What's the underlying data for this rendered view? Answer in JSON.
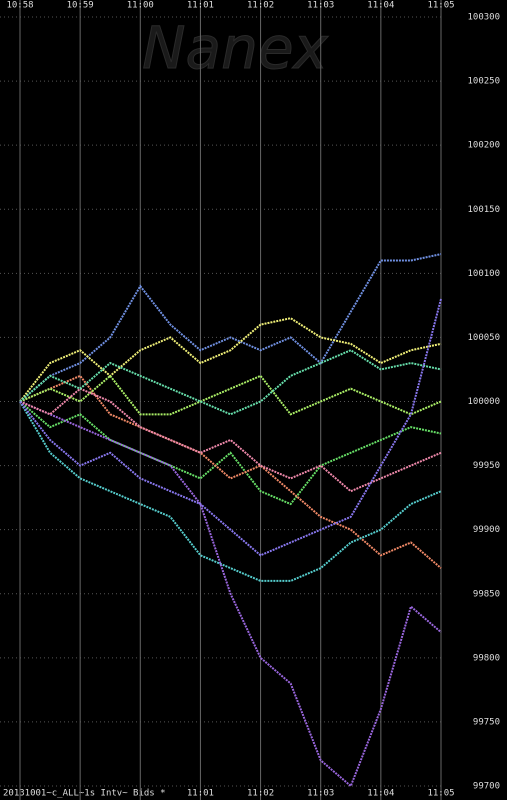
{
  "chart_data": {
    "type": "line",
    "title": "Nanex",
    "footer": "20131001~c_ALL~1s Intv~ Bids *",
    "x": [
      "10:58:00",
      "10:58:30",
      "10:59:00",
      "10:59:30",
      "11:00:00",
      "11:00:30",
      "11:01:00",
      "11:01:30",
      "11:02:00",
      "11:02:30",
      "11:03:00",
      "11:03:30",
      "11:04:00",
      "11:04:30",
      "11:05:00"
    ],
    "xlim": [
      "10:58",
      "11:05"
    ],
    "xticks": [
      "10:58",
      "10:59",
      "11:00",
      "11:01",
      "11:02",
      "11:03",
      "11:04",
      "11:05"
    ],
    "ylim": [
      99700,
      100300
    ],
    "yticks": [
      99700,
      99750,
      99800,
      99850,
      99900,
      99950,
      100000,
      100050,
      100100,
      100150,
      100200,
      100250,
      100300
    ],
    "grid": true,
    "series": [
      {
        "color": "#6f8fe0",
        "values": [
          100000,
          100020,
          100030,
          100050,
          100090,
          100060,
          100040,
          100050,
          100040,
          100050,
          100030,
          100070,
          100110,
          100110,
          100115
        ]
      },
      {
        "color": "#eeee77",
        "values": [
          100000,
          100030,
          100040,
          100020,
          100040,
          100050,
          100030,
          100040,
          100060,
          100065,
          100050,
          100045,
          100030,
          100040,
          100045
        ]
      },
      {
        "color": "#66dd66",
        "values": [
          100000,
          99980,
          99990,
          99970,
          99960,
          99950,
          99940,
          99960,
          99930,
          99920,
          99950,
          99960,
          99970,
          99980,
          99975
        ]
      },
      {
        "color": "#ee8866",
        "values": [
          100000,
          100010,
          100020,
          99990,
          99980,
          99970,
          99960,
          99940,
          99950,
          99930,
          99910,
          99900,
          99880,
          99890,
          99870
        ]
      },
      {
        "color": "#55cccc",
        "values": [
          100000,
          99960,
          99940,
          99930,
          99920,
          99910,
          99880,
          99870,
          99860,
          99860,
          99870,
          99890,
          99900,
          99920,
          99930
        ]
      },
      {
        "color": "#9966dd",
        "values": [
          100000,
          99990,
          99980,
          99970,
          99960,
          99950,
          99920,
          99850,
          99800,
          99780,
          99720,
          99700,
          99760,
          99840,
          99820
        ]
      },
      {
        "color": "#aaee66",
        "values": [
          100000,
          100010,
          100000,
          100020,
          99990,
          99990,
          100000,
          100010,
          100020,
          99990,
          100000,
          100010,
          100000,
          99990,
          100000
        ]
      },
      {
        "color": "#ee88aa",
        "values": [
          100000,
          99990,
          100010,
          100000,
          99980,
          99970,
          99960,
          99970,
          99950,
          99940,
          99950,
          99930,
          99940,
          99950,
          99960
        ]
      },
      {
        "color": "#66ddaa",
        "values": [
          100000,
          100020,
          100010,
          100030,
          100020,
          100010,
          100000,
          99990,
          100000,
          100020,
          100030,
          100040,
          100025,
          100030,
          100025
        ]
      },
      {
        "color": "#8877ee",
        "values": [
          100000,
          99970,
          99950,
          99960,
          99940,
          99930,
          99920,
          99900,
          99880,
          99890,
          99900,
          99910,
          99950,
          99990,
          100080
        ]
      }
    ]
  }
}
